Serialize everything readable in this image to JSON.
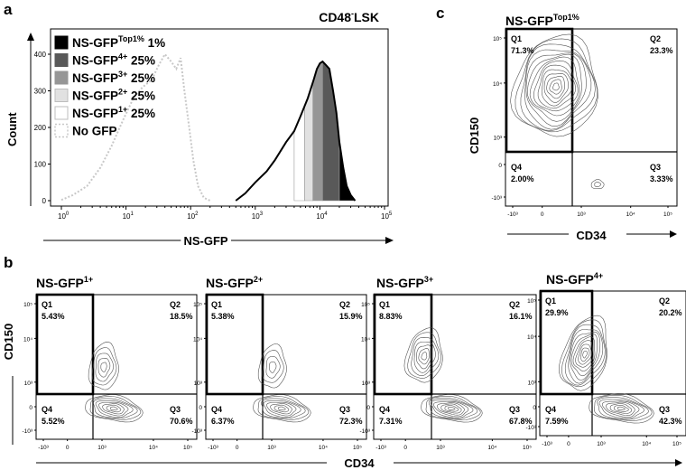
{
  "panels": {
    "a": "a",
    "b": "b",
    "c": "c"
  },
  "chart_data": [
    {
      "type": "area",
      "panel": "a",
      "title": "CD48",
      "title_superscript": "-",
      "title_suffix": "LSK",
      "xlabel": "NS-GFP",
      "ylabel": "Count",
      "xscale": "log",
      "xlim": [
        1,
        100000
      ],
      "ylim": [
        0,
        480
      ],
      "x_ticks": [
        {
          "base": "10",
          "exp": "0",
          "value": 1
        },
        {
          "base": "10",
          "exp": "1",
          "value": 10
        },
        {
          "base": "10",
          "exp": "2",
          "value": 100
        },
        {
          "base": "10",
          "exp": "3",
          "value": 1000
        },
        {
          "base": "10",
          "exp": "4",
          "value": 10000
        },
        {
          "base": "10",
          "exp": "5",
          "value": 100000
        }
      ],
      "y_ticks": [
        0,
        100,
        200,
        300,
        400
      ],
      "legend": [
        {
          "name": "NS-GFP",
          "sup": "Top1%",
          "pct": "1%",
          "fill": "#000000",
          "stroke": "#000000",
          "dashed": false
        },
        {
          "name": "NS-GFP",
          "sup": "4+",
          "pct": "25%",
          "fill": "#595959",
          "stroke": "#595959",
          "dashed": false
        },
        {
          "name": "NS-GFP",
          "sup": "3+",
          "pct": "25%",
          "fill": "#969696",
          "stroke": "#969696",
          "dashed": false
        },
        {
          "name": "NS-GFP",
          "sup": "2+",
          "pct": "25%",
          "fill": "#e1e1e1",
          "stroke": "#bdbdbd",
          "dashed": false
        },
        {
          "name": "NS-GFP",
          "sup": "1+",
          "pct": "25%",
          "fill": "#ffffff",
          "stroke": "#bdbdbd",
          "dashed": false
        },
        {
          "name": "No GFP",
          "sup": "",
          "pct": "",
          "fill": "#ffffff",
          "stroke": "#c8c8c8",
          "dashed": true
        }
      ],
      "series": [
        {
          "name": "No GFP",
          "x": [
            1.0,
            1.5,
            2.5,
            4.0,
            6.0,
            9.0,
            13,
            18,
            25,
            32,
            40,
            50,
            60,
            70,
            80,
            95,
            110,
            130,
            160,
            200
          ],
          "values": [
            2,
            15,
            40,
            90,
            150,
            220,
            280,
            310,
            330,
            370,
            400,
            380,
            360,
            390,
            300,
            200,
            110,
            40,
            8,
            0
          ]
        },
        {
          "name": "NS-GFP",
          "x": [
            500,
            700,
            1000,
            1500,
            2000,
            3000,
            4000,
            5000,
            6500,
            8000,
            9000,
            10000,
            11000,
            12500,
            14000,
            16000,
            18000,
            20000,
            23000,
            26000,
            30000,
            35000
          ],
          "values": [
            0,
            20,
            50,
            80,
            110,
            160,
            190,
            230,
            280,
            330,
            360,
            375,
            380,
            370,
            360,
            300,
            240,
            160,
            90,
            40,
            15,
            0
          ]
        }
      ],
      "gates": [
        {
          "name": "NS-GFP1+",
          "from": 4000,
          "to": 5800,
          "fill": "#ffffff"
        },
        {
          "name": "NS-GFP2+",
          "from": 5800,
          "to": 7800,
          "fill": "#e1e1e1"
        },
        {
          "name": "NS-GFP3+",
          "from": 7800,
          "to": 11000,
          "fill": "#969696"
        },
        {
          "name": "NS-GFP4+",
          "from": 11000,
          "to": 20000,
          "fill": "#595959"
        },
        {
          "name": "NS-GFPTop1%",
          "from": 20000,
          "to": 35000,
          "fill": "#000000"
        }
      ]
    },
    {
      "type": "contour",
      "panel": "c",
      "title": "NS-GFP",
      "title_superscript": "Top1%",
      "xlabel": "CD34",
      "ylabel": "CD150",
      "x_ticks": [
        "-10³",
        "0",
        "10³",
        "10⁴",
        "10⁵"
      ],
      "y_ticks": [
        "-10³",
        "0",
        "10³",
        "10⁴",
        "10⁵"
      ],
      "quadrants": [
        {
          "name": "Q1",
          "value": "71.3%"
        },
        {
          "name": "Q2",
          "value": "23.3%"
        },
        {
          "name": "Q3",
          "value": "3.33%"
        },
        {
          "name": "Q4",
          "value": "2.00%"
        }
      ]
    },
    {
      "type": "contour",
      "panel": "b",
      "title": "NS-GFP",
      "title_superscript": "1+",
      "xlabel": "CD34",
      "ylabel": "CD150",
      "x_ticks": [
        "-10³",
        "0",
        "10³",
        "10⁴",
        "10⁵"
      ],
      "y_ticks": [
        "-10³",
        "0",
        "10³",
        "10⁴",
        "10⁵"
      ],
      "quadrants": [
        {
          "name": "Q1",
          "value": "5.43%"
        },
        {
          "name": "Q2",
          "value": "18.5%"
        },
        {
          "name": "Q3",
          "value": "70.6%"
        },
        {
          "name": "Q4",
          "value": "5.52%"
        }
      ]
    },
    {
      "type": "contour",
      "panel": "b",
      "title": "NS-GFP",
      "title_superscript": "2+",
      "xlabel": "CD34",
      "ylabel": "CD150",
      "x_ticks": [
        "-10³",
        "0",
        "10³",
        "10⁴",
        "10⁵"
      ],
      "y_ticks": [
        "-10³",
        "0",
        "10³",
        "10⁴",
        "10⁵"
      ],
      "quadrants": [
        {
          "name": "Q1",
          "value": "5.38%"
        },
        {
          "name": "Q2",
          "value": "15.9%"
        },
        {
          "name": "Q3",
          "value": "72.3%"
        },
        {
          "name": "Q4",
          "value": "6.37%"
        }
      ]
    },
    {
      "type": "contour",
      "panel": "b",
      "title": "NS-GFP",
      "title_superscript": "3+",
      "xlabel": "CD34",
      "ylabel": "CD150",
      "x_ticks": [
        "-10³",
        "0",
        "10³",
        "10⁴",
        "10⁵"
      ],
      "y_ticks": [
        "-10³",
        "0",
        "10³",
        "10⁴",
        "10⁵"
      ],
      "quadrants": [
        {
          "name": "Q1",
          "value": "8.83%"
        },
        {
          "name": "Q2",
          "value": "16.1%"
        },
        {
          "name": "Q3",
          "value": "67.8%"
        },
        {
          "name": "Q4",
          "value": "7.31%"
        }
      ]
    },
    {
      "type": "contour",
      "panel": "b",
      "title": "NS-GFP",
      "title_superscript": "4+",
      "xlabel": "CD34",
      "ylabel": "CD150",
      "x_ticks": [
        "-10³",
        "0",
        "10³",
        "10⁴",
        "10⁵"
      ],
      "y_ticks": [
        "-10³",
        "0",
        "10³",
        "10⁴",
        "10⁵"
      ],
      "quadrants": [
        {
          "name": "Q1",
          "value": "29.9%"
        },
        {
          "name": "Q2",
          "value": "20.2%"
        },
        {
          "name": "Q3",
          "value": "42.3%"
        },
        {
          "name": "Q4",
          "value": "7.59%"
        }
      ]
    }
  ]
}
